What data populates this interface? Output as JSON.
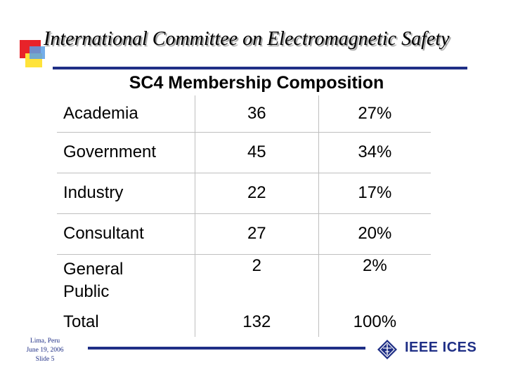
{
  "header": {
    "title": "International Committee on Electromagnetic Safety"
  },
  "slide": {
    "heading": "SC4 Membership Composition",
    "rows": [
      {
        "category": "Academia",
        "count": "36",
        "percent": "27%"
      },
      {
        "category": "Government",
        "count": "45",
        "percent": "34%"
      },
      {
        "category": "Industry",
        "count": "22",
        "percent": "17%"
      },
      {
        "category": "Consultant",
        "count": "27",
        "percent": "20%"
      },
      {
        "category": "General Public",
        "count": "2",
        "percent": "2%"
      },
      {
        "category": "Total",
        "count": "132",
        "percent": "100%"
      }
    ]
  },
  "footer": {
    "location": "Lima, Peru",
    "date": "June 19, 2006",
    "slide_number": "Slide 5",
    "brand": "IEEE ICES"
  },
  "colors": {
    "accent_blue": "#1f2f86",
    "square_red": "#e8232a",
    "square_yellow": "#ffe33a",
    "square_blue": "#5aa0e6"
  }
}
